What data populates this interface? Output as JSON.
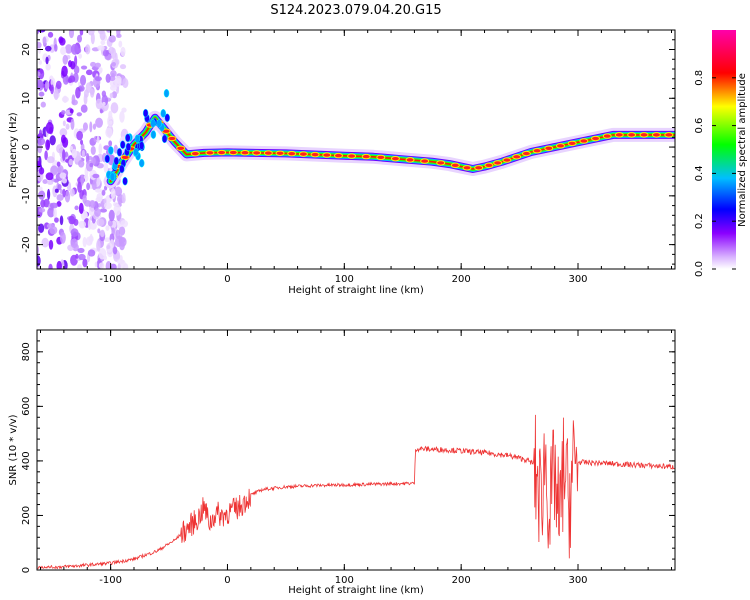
{
  "title": "S124.2023.079.04.20.G15",
  "chart_data": [
    {
      "type": "heatmap",
      "xlabel": "Height of straight line (km)",
      "ylabel": "Frequency (Hz)",
      "xlim": [
        -163,
        383
      ],
      "ylim": [
        -25,
        24
      ],
      "xticks": [
        -100,
        0,
        100,
        200,
        300
      ],
      "yticks": [
        -20,
        -10,
        0,
        10,
        20
      ],
      "colorbar": {
        "label": "Normalized spectral amplitude",
        "range": [
          0,
          1
        ],
        "ticks": [
          "0.0",
          "0.2",
          "0.4",
          "0.6",
          "0.8"
        ],
        "colormap": [
          "#ffffff",
          "#8a00ff",
          "#0000ff",
          "#00bfff",
          "#00ff00",
          "#ffff00",
          "#ff0000",
          "#ff00aa"
        ]
      },
      "ridge_frequency_hz": {
        "x": [
          -100,
          -90,
          -80,
          -70,
          -62,
          -55,
          -45,
          -35,
          -20,
          0,
          50,
          100,
          125,
          150,
          175,
          190,
          210,
          220,
          235,
          260,
          300,
          330,
          383
        ],
        "y": [
          -7,
          -3,
          0.5,
          3,
          6,
          4,
          1,
          -1.5,
          -1.2,
          -1.1,
          -1.3,
          -1.8,
          -2.0,
          -2.5,
          -3.0,
          -3.5,
          -4.5,
          -4.0,
          -3.0,
          -1.0,
          1.0,
          2.5,
          2.5
        ]
      },
      "noise_region_x": [
        -163,
        -100
      ]
    },
    {
      "type": "line",
      "xlabel": "Height of straight line (km)",
      "ylabel": "SNR (10 * v/v)",
      "xlim": [
        -163,
        383
      ],
      "ylim": [
        0,
        880
      ],
      "xticks": [
        -100,
        0,
        100,
        200,
        300
      ],
      "yticks": [
        0,
        200,
        400,
        600,
        800
      ],
      "color": "#ee3333",
      "series": [
        {
          "name": "",
          "x": [
            -163,
            -140,
            -120,
            -100,
            -80,
            -60,
            -45,
            -35,
            -25,
            -20,
            -15,
            -10,
            -5,
            0,
            10,
            20,
            30,
            50,
            75,
            100,
            130,
            158,
            160,
            161,
            190,
            220,
            240,
            255,
            262,
            268,
            272,
            276,
            280,
            284,
            288,
            292,
            296,
            300,
            320,
            350,
            383
          ],
          "y": [
            8,
            12,
            18,
            25,
            40,
            70,
            110,
            150,
            190,
            230,
            170,
            210,
            200,
            210,
            230,
            275,
            295,
            305,
            310,
            312,
            315,
            318,
            318,
            445,
            440,
            430,
            420,
            405,
            390,
            260,
            420,
            200,
            360,
            150,
            400,
            240,
            380,
            395,
            392,
            385,
            378
          ]
        }
      ]
    }
  ]
}
